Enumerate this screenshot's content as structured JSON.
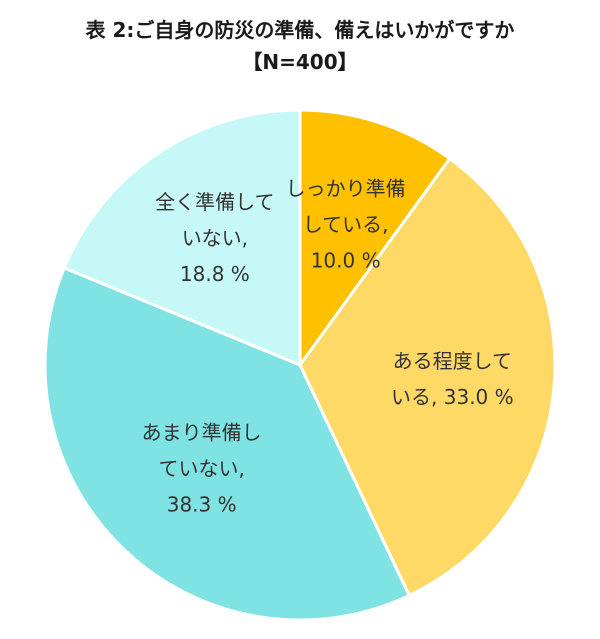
{
  "title": "表 2:ご自身の防災の準備、備えはいかがですか",
  "subtitle": "【N=400】",
  "chart_data": {
    "type": "pie",
    "start": "top",
    "direction": "clockwise",
    "slices": [
      {
        "label_lines": [
          "しっかり準備",
          "している,",
          "10.0 %"
        ],
        "value": 10.0,
        "color": "#FFC000"
      },
      {
        "label_lines": [
          "ある程度して",
          "いる, 33.0 %"
        ],
        "value": 33.0,
        "color": "#FFD966"
      },
      {
        "label_lines": [
          "あまり準備し",
          "ていない,",
          "38.3 %"
        ],
        "value": 38.3,
        "color": "#7FE3E3"
      },
      {
        "label_lines": [
          "全く準備して",
          "いない,",
          "18.8 %"
        ],
        "value": 18.8,
        "color": "#C6F8F8"
      }
    ]
  }
}
